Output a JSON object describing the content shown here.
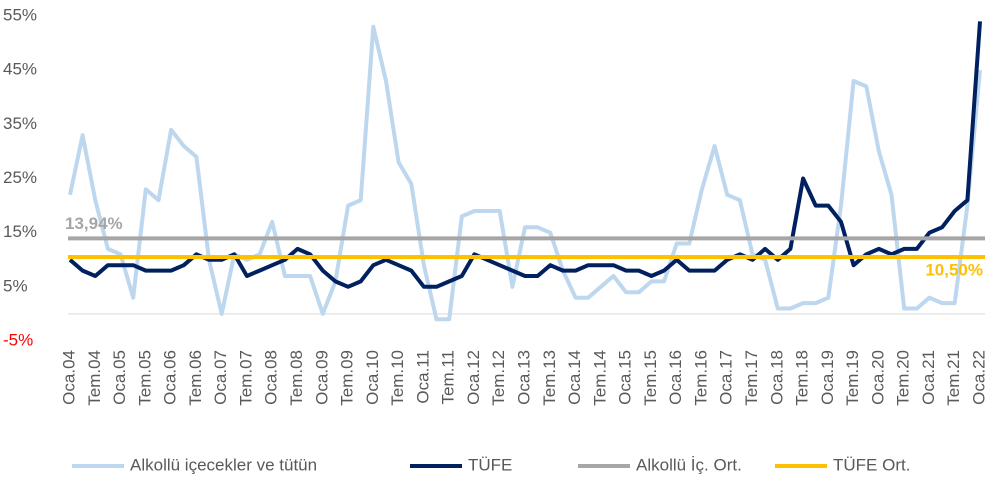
{
  "chart_data": {
    "type": "line",
    "categories": [
      "Oca.04",
      null,
      "Tem.04",
      null,
      "Oca.05",
      null,
      "Tem.05",
      null,
      "Oca.06",
      null,
      "Tem.06",
      null,
      "Oca.07",
      null,
      "Tem.07",
      null,
      "Oca.08",
      null,
      "Tem.08",
      null,
      "Oca.09",
      null,
      "Tem.09",
      null,
      "Oca.10",
      null,
      "Tem.10",
      null,
      "Oca.11",
      null,
      "Tem.11",
      null,
      "Oca.12",
      null,
      "Tem.12",
      null,
      "Oca.13",
      null,
      "Tem.13",
      null,
      "Oca.14",
      null,
      "Tem.14",
      null,
      "Oca.15",
      null,
      "Tem.15",
      null,
      "Oca.16",
      null,
      "Tem.16",
      null,
      "Oca.17",
      null,
      "Tem.17",
      null,
      "Oca.18",
      null,
      "Tem.18",
      null,
      "Oca.19",
      null,
      "Tem.19",
      null,
      "Oca.20",
      null,
      "Tem.20",
      null,
      "Oca.21",
      null,
      "Tem.21",
      null,
      "Oca.22"
    ],
    "series": [
      {
        "name": "Alkollü içecekler ve tütün",
        "color": "#bdd7ee",
        "values": [
          22,
          33,
          21,
          12,
          11,
          3,
          23,
          21,
          34,
          31,
          29,
          10,
          0,
          11,
          10,
          11,
          17,
          7,
          7,
          7,
          0,
          6,
          20,
          21,
          53,
          43,
          28,
          24,
          9,
          -1,
          -1,
          18,
          19,
          19,
          19,
          5,
          16,
          16,
          15,
          8,
          3,
          3,
          5,
          7,
          4,
          4,
          6,
          6,
          13,
          13,
          23,
          31,
          22,
          21,
          11,
          10,
          1,
          1,
          2,
          2,
          3,
          20,
          43,
          42,
          30,
          22,
          1,
          1,
          3,
          2,
          2,
          20,
          45
        ]
      },
      {
        "name": "TÜFE",
        "color": "#002060",
        "values": [
          10,
          8,
          7,
          9,
          9,
          9,
          8,
          8,
          8,
          9,
          11,
          10,
          10,
          11,
          7,
          8,
          9,
          10,
          12,
          11,
          8,
          6,
          5,
          6,
          9,
          10,
          9,
          8,
          5,
          5,
          6,
          7,
          11,
          10,
          9,
          8,
          7,
          7,
          9,
          8,
          8,
          9,
          9,
          9,
          8,
          8,
          7,
          8,
          10,
          8,
          8,
          8,
          10,
          11,
          10,
          12,
          10,
          12,
          25,
          20,
          20,
          17,
          9,
          11,
          12,
          11,
          12,
          12,
          15,
          16,
          19,
          21,
          54
        ]
      }
    ],
    "references": [
      {
        "name": "Alkollü İç. Ort.",
        "color": "#a6a6a6",
        "value": 13.94,
        "label": "13,94%"
      },
      {
        "name": "TÜFE Ort.",
        "color": "#ffc000",
        "value": 10.5,
        "label": "10,50%"
      }
    ],
    "ylim": [
      -5,
      55
    ],
    "yticks": [
      {
        "value": -5,
        "label": "-5%",
        "color": "#ff0000"
      },
      {
        "value": 5,
        "label": "5%"
      },
      {
        "value": 15,
        "label": "15%"
      },
      {
        "value": 25,
        "label": "25%"
      },
      {
        "value": 35,
        "label": "35%"
      },
      {
        "value": 45,
        "label": "45%"
      },
      {
        "value": 55,
        "label": "55%"
      }
    ]
  }
}
